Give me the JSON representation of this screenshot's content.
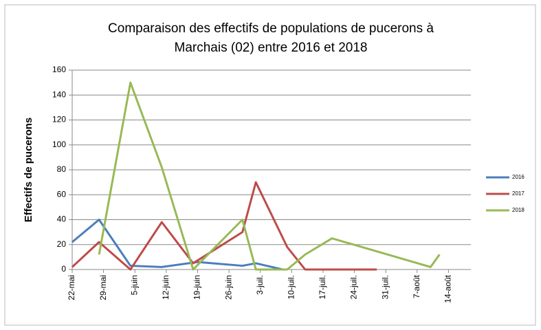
{
  "chart_data": {
    "type": "line",
    "title": [
      "Comparaison des effectifs de populations de pucerons à",
      "Marchais (02) entre 2016 et 2018"
    ],
    "y_label": "Effectifs de pucerons",
    "xlim": [
      0,
      89
    ],
    "xticks": [
      {
        "value": 0,
        "label": "22-mai"
      },
      {
        "value": 7,
        "label": "29-mai"
      },
      {
        "value": 14,
        "label": "5-juin"
      },
      {
        "value": 21,
        "label": "12-juin"
      },
      {
        "value": 28,
        "label": "19-juin"
      },
      {
        "value": 35,
        "label": "26-juin"
      },
      {
        "value": 42,
        "label": "3-juil."
      },
      {
        "value": 49,
        "label": "10-juil."
      },
      {
        "value": 56,
        "label": "17-juil."
      },
      {
        "value": 63,
        "label": "24-juil."
      },
      {
        "value": 70,
        "label": "31-juil."
      },
      {
        "value": 77,
        "label": "7-août"
      },
      {
        "value": 84,
        "label": "14-août"
      }
    ],
    "ylim": [
      0,
      160
    ],
    "yticks": [
      0,
      20,
      40,
      60,
      80,
      100,
      120,
      140,
      160
    ],
    "grid": true,
    "legend": "right",
    "series": [
      {
        "name": "2016",
        "color": "#4a7ebb",
        "x": [
          0,
          6,
          13,
          20,
          28,
          38,
          41,
          47
        ],
        "values": [
          22,
          40,
          3,
          2,
          6,
          3,
          5,
          0
        ]
      },
      {
        "name": "2017",
        "color": "#be4b48",
        "x": [
          0,
          6,
          13,
          20,
          27,
          38,
          41,
          48,
          52,
          68
        ],
        "values": [
          2,
          22,
          0,
          38,
          5,
          30,
          70,
          18,
          0,
          0
        ]
      },
      {
        "name": "2018",
        "color": "#98b954",
        "x": [
          6,
          13,
          20,
          27,
          38,
          41,
          48,
          52,
          58,
          80,
          82
        ],
        "values": [
          12,
          150,
          82,
          0,
          40,
          0,
          0,
          12,
          25,
          2,
          12
        ]
      }
    ]
  }
}
